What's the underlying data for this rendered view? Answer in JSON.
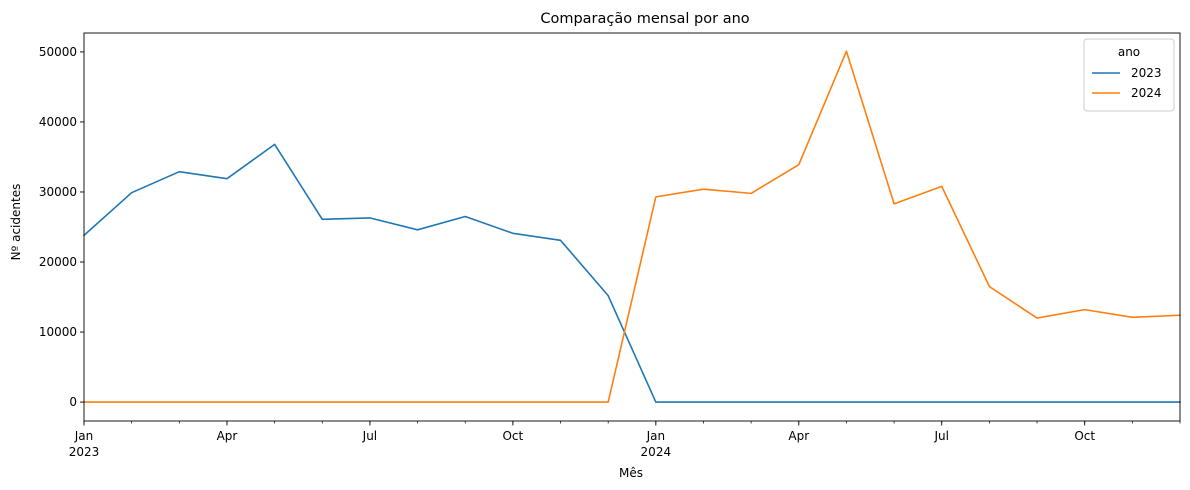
{
  "chart_data": {
    "type": "line",
    "title": "Comparação mensal por ano",
    "xlabel": "Mês",
    "ylabel": "Nº acidentes",
    "x": [
      "2023-01",
      "2023-02",
      "2023-03",
      "2023-04",
      "2023-05",
      "2023-06",
      "2023-07",
      "2023-08",
      "2023-09",
      "2023-10",
      "2023-11",
      "2023-12",
      "2024-01",
      "2024-02",
      "2024-03",
      "2024-04",
      "2024-05",
      "2024-06",
      "2024-07",
      "2024-08",
      "2024-09",
      "2024-10",
      "2024-11",
      "2024-12"
    ],
    "series": [
      {
        "name": "2023",
        "color": "#1f77b4",
        "values": [
          23800,
          29900,
          32900,
          31900,
          36800,
          26100,
          26300,
          24600,
          26500,
          24100,
          23100,
          15200,
          0,
          0,
          0,
          0,
          0,
          0,
          0,
          0,
          0,
          0,
          0,
          0
        ]
      },
      {
        "name": "2024",
        "color": "#ff7f0e",
        "values": [
          0,
          0,
          0,
          0,
          0,
          0,
          0,
          0,
          0,
          0,
          0,
          0,
          29300,
          30400,
          29800,
          33900,
          50100,
          28300,
          30800,
          16500,
          12000,
          13200,
          12100,
          12400
        ]
      }
    ],
    "ylim": [
      -2700,
      52700
    ],
    "yticks": [
      0,
      10000,
      20000,
      30000,
      40000,
      50000
    ],
    "xtick_labels": [
      {
        "x": "2023-01",
        "text": "Jan",
        "sub": "2023"
      },
      {
        "x": "2023-04",
        "text": "Apr"
      },
      {
        "x": "2023-07",
        "text": "Jul"
      },
      {
        "x": "2023-10",
        "text": "Oct"
      },
      {
        "x": "2024-01",
        "text": "Jan",
        "sub": "2024"
      },
      {
        "x": "2024-04",
        "text": "Apr"
      },
      {
        "x": "2024-07",
        "text": "Jul"
      },
      {
        "x": "2024-10",
        "text": "Oct"
      }
    ],
    "legend": {
      "title": "ano",
      "placement": "top-right"
    },
    "grid": false
  }
}
